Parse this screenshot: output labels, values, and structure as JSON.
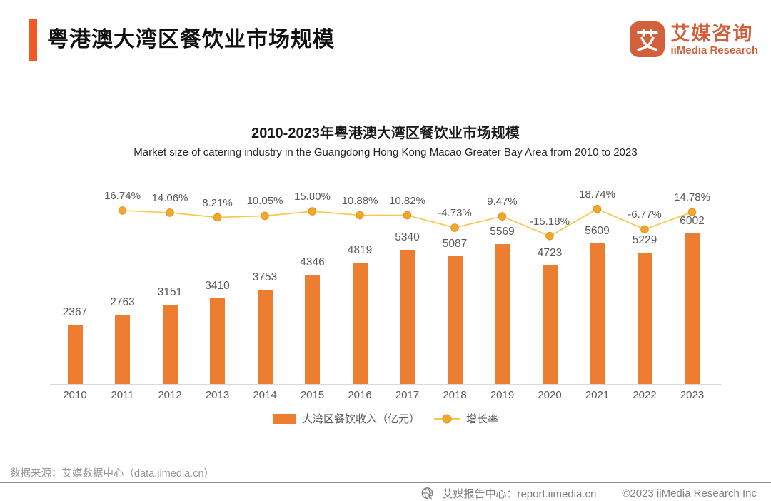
{
  "header": {
    "title": "粤港澳大湾区餐饮业市场规模"
  },
  "logo": {
    "icon_char": "艾",
    "name_cn": "艾媒咨询",
    "name_en": "iiMedia Research"
  },
  "colors": {
    "accent_orange": "#F05A28",
    "logo_orange": "#D2603C",
    "bar_orange": "#ED7D31",
    "line_gold": "#F6C94B",
    "marker_gold": "#F1A62E",
    "marker_edge": "#E0941C",
    "label_gray": "#595959",
    "footer_gray": "#7F7F7F"
  },
  "chart_data": {
    "type": "bar",
    "combo": "bar+line",
    "title": "2010-2023年粤港澳大湾区餐饮业市场规模",
    "subtitle": "Market size of catering industry in the Guangdong Hong Kong Macao Greater Bay Area from 2010 to 2023",
    "categories": [
      "2010",
      "2011",
      "2012",
      "2013",
      "2014",
      "2015",
      "2016",
      "2017",
      "2018",
      "2019",
      "2020",
      "2021",
      "2022",
      "2023"
    ],
    "series": [
      {
        "name": "大湾区餐饮收入（亿元）",
        "type": "bar",
        "color": "#ED7D31",
        "values": [
          2367,
          2763,
          3151,
          3410,
          3753,
          4346,
          4819,
          5340,
          5087,
          5569,
          4723,
          5609,
          5229,
          6002
        ]
      },
      {
        "name": "增长率",
        "type": "line",
        "unit": "%",
        "color": "#F6C94B",
        "marker_color": "#F1A62E",
        "x_start_index": 1,
        "values": [
          16.74,
          14.06,
          8.21,
          10.05,
          15.8,
          10.88,
          10.82,
          -4.73,
          9.47,
          -15.18,
          18.74,
          -6.77,
          14.78
        ],
        "labels": [
          "16.74%",
          "14.06%",
          "8.21%",
          "10.05%",
          "15.80%",
          "10.88%",
          "10.82%",
          "-4.73%",
          "9.47%",
          "-15.18%",
          "18.74%",
          "-6.77%",
          "14.78%"
        ]
      }
    ],
    "legend_position": "bottom",
    "grid": false,
    "ylim_bars": [
      0,
      8180
    ],
    "ylim_growth_pct": [
      -35,
      57
    ]
  },
  "footer": {
    "source": "数据来源：艾媒数据中心（data.iimedia.cn）",
    "report_center": "艾媒报告中心：report.iimedia.cn",
    "copyright": "©2023  iiMedia Research Inc"
  }
}
